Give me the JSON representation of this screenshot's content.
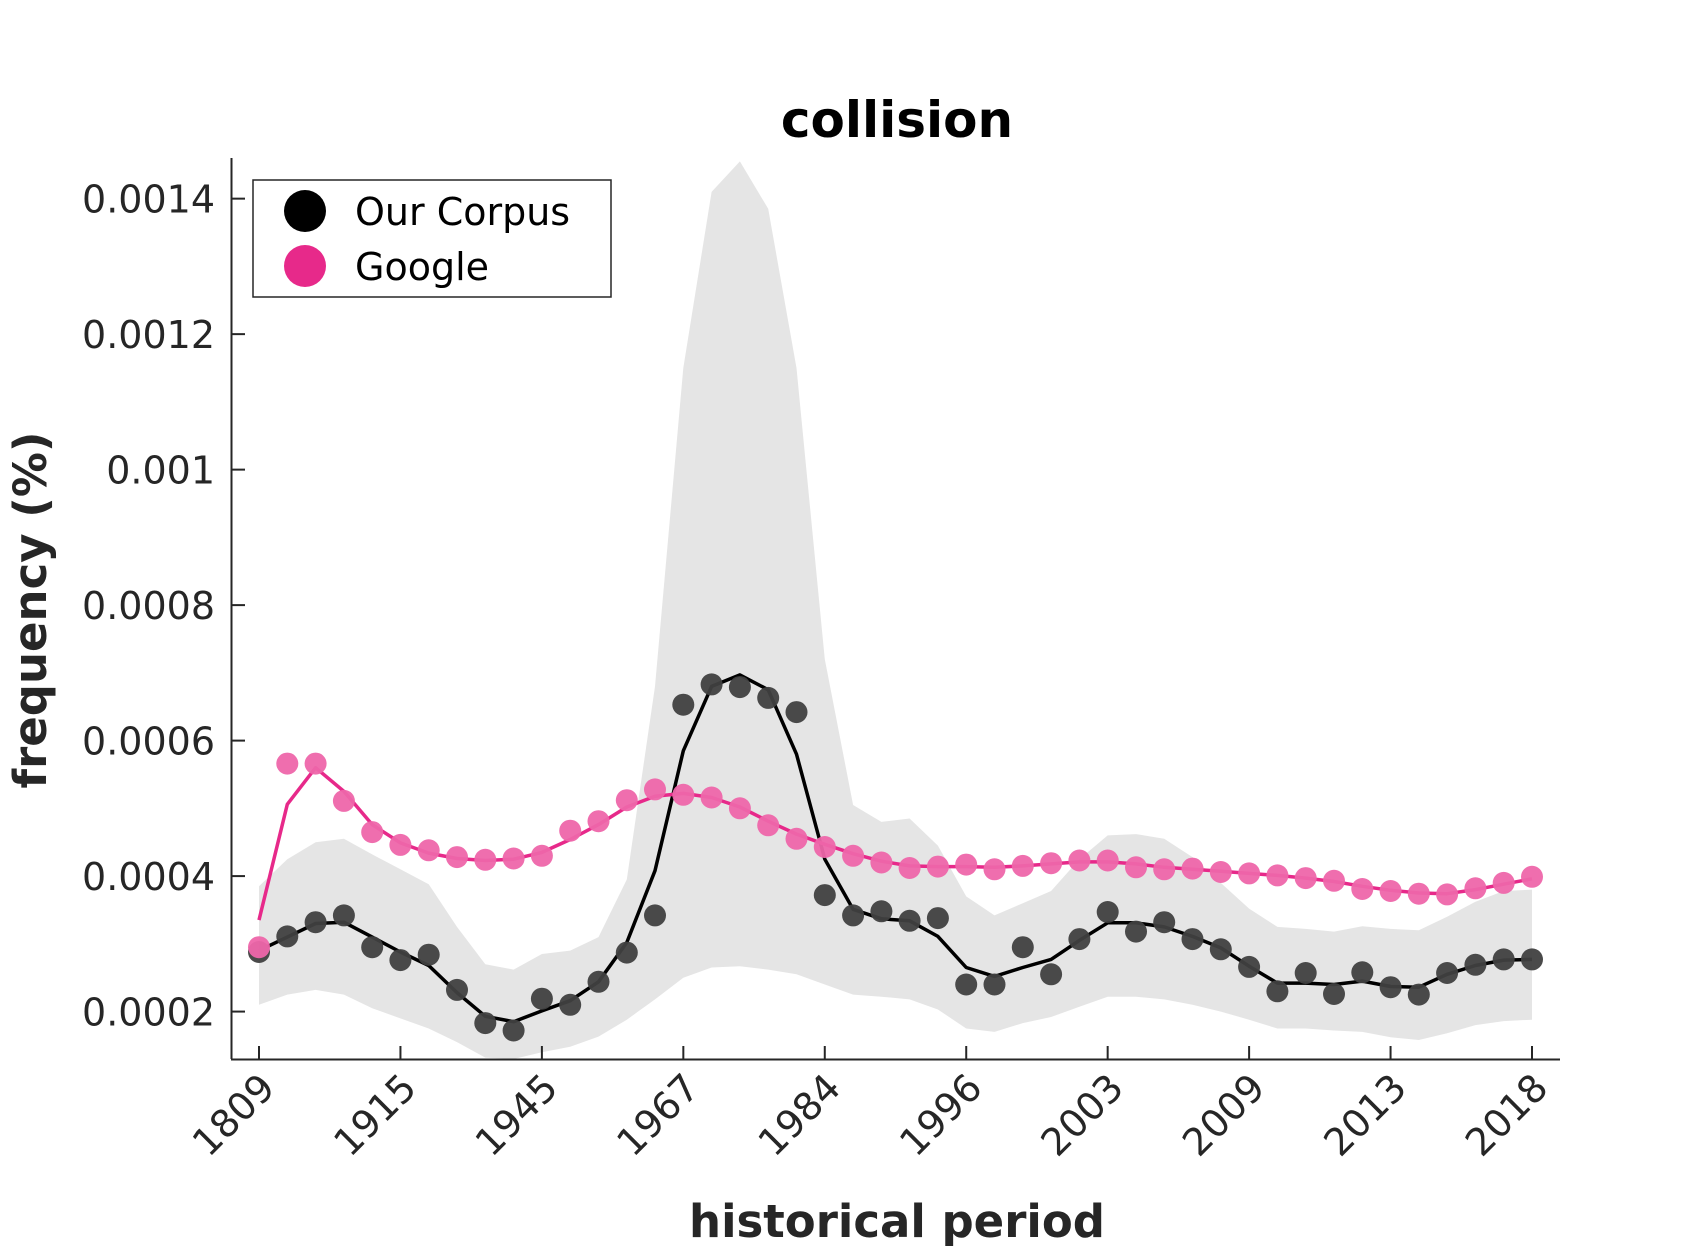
{
  "chart_data": {
    "type": "line",
    "title": "collision",
    "xlabel": "historical period",
    "ylabel": "frequency (%)",
    "x_tick_labels": [
      "1809",
      "1915",
      "1945",
      "1967",
      "1984",
      "1996",
      "2003",
      "2009",
      "2013",
      "2018"
    ],
    "y_ticks": [
      0.0002,
      0.0004,
      0.0006,
      0.0008,
      0.001,
      0.0012,
      0.0014
    ],
    "y_tick_labels": [
      "0.0002",
      "0.0004",
      "0.0006",
      "0.0008",
      "0.001",
      "0.0012",
      "0.0014"
    ],
    "ylim": [
      0.00013,
      0.00146
    ],
    "x_index_range": [
      0,
      45
    ],
    "legend": {
      "position": "top-left"
    },
    "grid": false,
    "series": [
      {
        "name": "Our Corpus",
        "color": "#000000",
        "points": [
          0.000288,
          0.000311,
          0.000332,
          0.000342,
          0.000295,
          0.000276,
          0.000284,
          0.000232,
          0.000183,
          0.000172,
          0.000219,
          0.00021,
          0.000244,
          0.000287,
          0.000342,
          0.000653,
          0.000683,
          0.000679,
          0.000663,
          0.000642,
          0.000372,
          0.000342,
          0.000348,
          0.000334,
          0.000338,
          0.00024,
          0.00024,
          0.000295,
          0.000255,
          0.000307,
          0.000347,
          0.000318,
          0.000332,
          0.000307,
          0.000292,
          0.000266,
          0.00023,
          0.000257,
          0.000226,
          0.000258,
          0.000236,
          0.000225,
          0.000257,
          0.000269,
          0.000277,
          0.000277
        ],
        "smoothed": [
          0.00029,
          0.00031,
          0.00033,
          0.000332,
          0.00031,
          0.000288,
          0.000268,
          0.000228,
          0.000193,
          0.000185,
          0.000201,
          0.000216,
          0.000244,
          0.000302,
          0.000408,
          0.000585,
          0.00068,
          0.000697,
          0.000675,
          0.00058,
          0.000425,
          0.000351,
          0.000337,
          0.000334,
          0.000311,
          0.000265,
          0.000252,
          0.000265,
          0.000277,
          0.000305,
          0.000331,
          0.000331,
          0.000325,
          0.000311,
          0.000294,
          0.000267,
          0.000242,
          0.000242,
          0.00024,
          0.000245,
          0.000237,
          0.000236,
          0.000255,
          0.000268,
          0.000276,
          0.000277
        ],
        "band_upper": [
          0.000385,
          0.000425,
          0.00045,
          0.000455,
          0.000432,
          0.00041,
          0.000388,
          0.000325,
          0.00027,
          0.000262,
          0.000285,
          0.00029,
          0.00031,
          0.000395,
          0.00068,
          0.00115,
          0.00141,
          0.001455,
          0.001385,
          0.00115,
          0.00072,
          0.000505,
          0.00048,
          0.000485,
          0.000445,
          0.00037,
          0.000342,
          0.00036,
          0.000378,
          0.000425,
          0.00046,
          0.000462,
          0.000455,
          0.000428,
          0.00039,
          0.000352,
          0.000325,
          0.000322,
          0.000318,
          0.000326,
          0.000322,
          0.00032,
          0.00034,
          0.000362,
          0.000378,
          0.00038
        ],
        "band_lower": [
          0.00021,
          0.000225,
          0.000232,
          0.000225,
          0.000205,
          0.00019,
          0.000175,
          0.000155,
          0.000132,
          0.00013,
          0.00014,
          0.000148,
          0.000163,
          0.000188,
          0.000218,
          0.00025,
          0.000265,
          0.000267,
          0.000262,
          0.000255,
          0.00024,
          0.000225,
          0.000222,
          0.000218,
          0.000203,
          0.000175,
          0.00017,
          0.000183,
          0.000192,
          0.000207,
          0.000222,
          0.000222,
          0.000218,
          0.00021,
          0.0002,
          0.000188,
          0.000175,
          0.000175,
          0.000172,
          0.00017,
          0.000162,
          0.000158,
          0.000168,
          0.00018,
          0.000186,
          0.000188
        ]
      },
      {
        "name": "Google",
        "color": "#e7298a",
        "points": [
          0.000295,
          0.000566,
          0.000566,
          0.000511,
          0.000465,
          0.000446,
          0.000438,
          0.000428,
          0.000424,
          0.000426,
          0.00043,
          0.000467,
          0.000481,
          0.000512,
          0.000528,
          0.00052,
          0.000516,
          0.0005,
          0.000475,
          0.000455,
          0.000443,
          0.00043,
          0.00042,
          0.000412,
          0.000414,
          0.000417,
          0.00041,
          0.000415,
          0.000419,
          0.000423,
          0.000423,
          0.000413,
          0.00041,
          0.000411,
          0.000406,
          0.000404,
          0.000401,
          0.000397,
          0.000393,
          0.000381,
          0.000378,
          0.000374,
          0.000373,
          0.000382,
          0.00039,
          0.000399
        ],
        "smoothed": [
          0.000335,
          0.000506,
          0.00056,
          0.000525,
          0.000476,
          0.000449,
          0.000434,
          0.000426,
          0.000423,
          0.000425,
          0.000435,
          0.000454,
          0.000476,
          0.000502,
          0.000518,
          0.000522,
          0.000516,
          0.000502,
          0.000481,
          0.000462,
          0.000447,
          0.000433,
          0.000422,
          0.000415,
          0.000414,
          0.000414,
          0.000413,
          0.000415,
          0.000418,
          0.000421,
          0.000421,
          0.000418,
          0.000413,
          0.00041,
          0.000407,
          0.000404,
          0.000401,
          0.000397,
          0.000392,
          0.000385,
          0.000379,
          0.000375,
          0.000374,
          0.00038,
          0.000388,
          0.000396
        ]
      }
    ]
  }
}
